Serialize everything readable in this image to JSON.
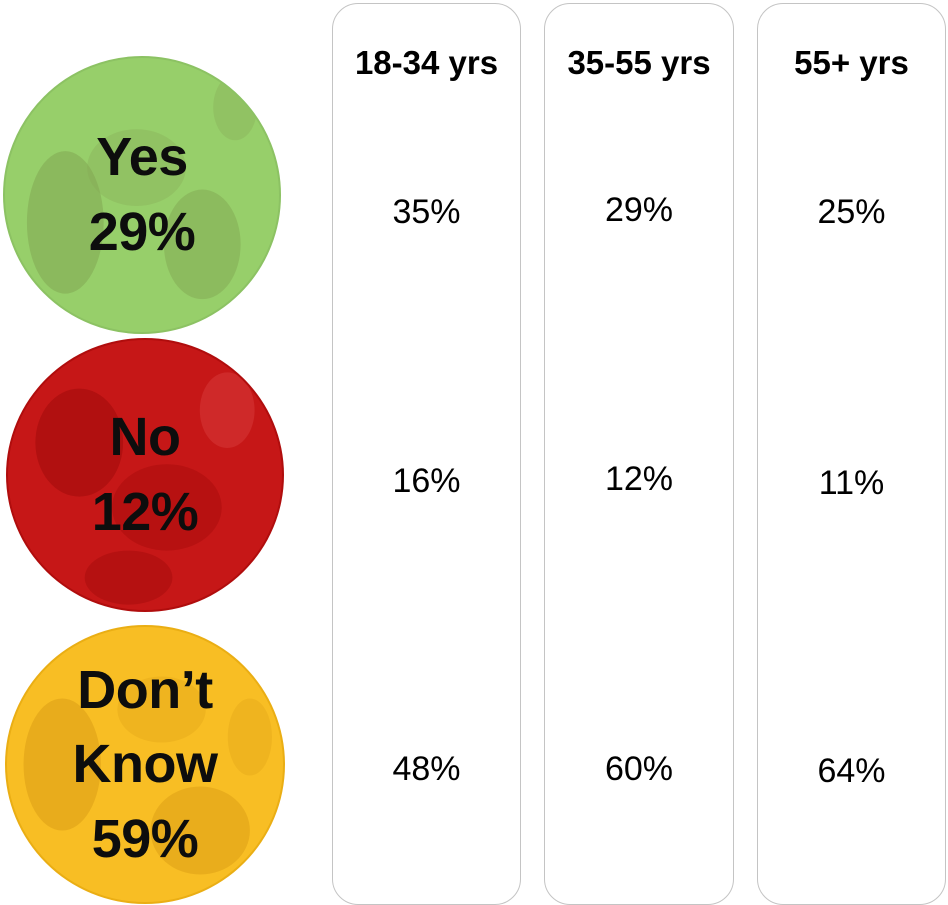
{
  "chart_data": {
    "type": "table",
    "rows": [
      {
        "label": "Yes",
        "total": "29%",
        "color": "#97cf6a"
      },
      {
        "label": "No",
        "total": "12%",
        "color": "#c61717"
      },
      {
        "label_line1": "Don’t",
        "label_line2": "Know",
        "total": "59%",
        "color": "#f8be24"
      }
    ],
    "columns": [
      {
        "header": "18-34 yrs",
        "values": [
          "35%",
          "16%",
          "48%"
        ]
      },
      {
        "header": "35-55 yrs",
        "values": [
          "29%",
          "12%",
          "60%"
        ]
      },
      {
        "header": "55+ yrs",
        "values": [
          "25%",
          "11%",
          "64%"
        ]
      }
    ]
  }
}
